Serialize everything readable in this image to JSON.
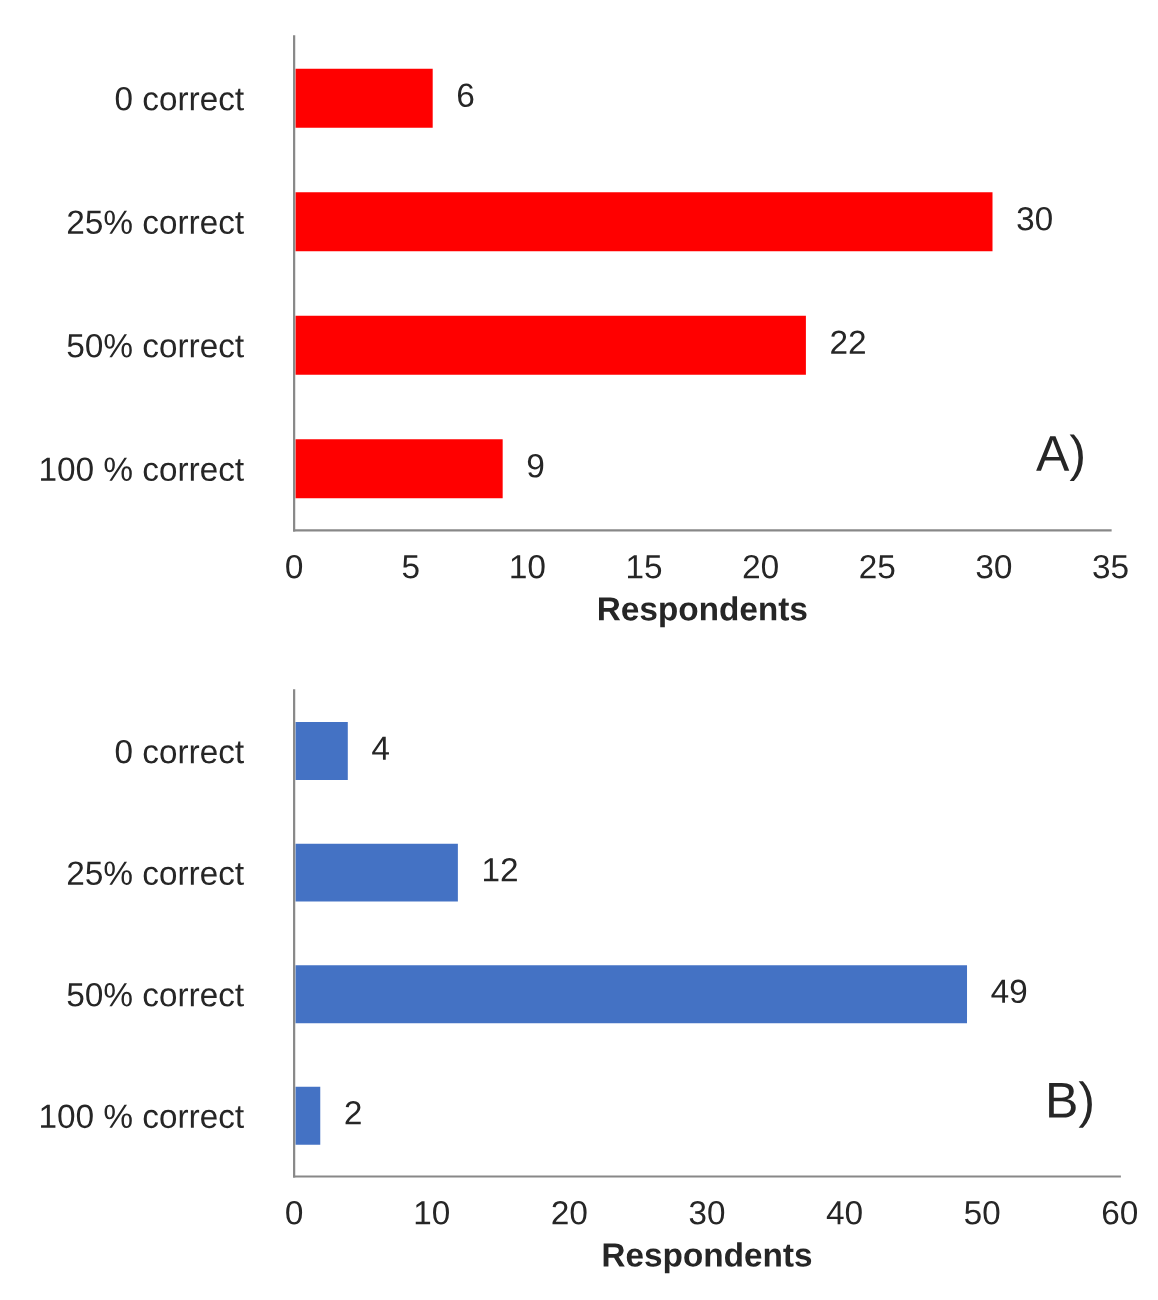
{
  "chart_data": [
    {
      "type": "bar",
      "orientation": "horizontal",
      "categories": [
        "0 correct",
        "25% correct",
        "50% correct",
        "100 % correct"
      ],
      "values": [
        6,
        30,
        22,
        9
      ],
      "color": "#ff0000",
      "xlim": [
        0,
        35
      ],
      "xticks": [
        0,
        5,
        10,
        15,
        20,
        25,
        30,
        35
      ],
      "xlabel": "Respondents",
      "data_labels": true,
      "grid": false,
      "legend": false,
      "annotations": [
        "A)"
      ]
    },
    {
      "type": "bar",
      "orientation": "horizontal",
      "categories": [
        "0 correct",
        "25% correct",
        "50% correct",
        "100 % correct"
      ],
      "values": [
        4,
        12,
        49,
        2
      ],
      "color": "#4472c4",
      "xlim": [
        0,
        60
      ],
      "xticks": [
        0,
        10,
        20,
        30,
        40,
        50,
        60
      ],
      "xlabel": "Respondents",
      "data_labels": true,
      "grid": false,
      "legend": false,
      "annotations": [
        "B)"
      ]
    }
  ]
}
